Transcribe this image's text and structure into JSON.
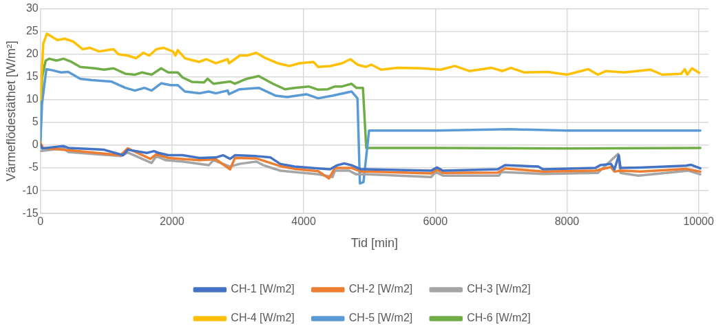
{
  "chart_data": {
    "type": "line",
    "xlabel": "Tid [min]",
    "ylabel": "Värmeflödestäthet [W/m²]",
    "xlim": [
      0,
      10150
    ],
    "xticks": [
      0,
      2000,
      4000,
      6000,
      8000,
      10000
    ],
    "ylim": [
      -15,
      30
    ],
    "yticks": [
      -15,
      -10,
      -5,
      0,
      5,
      10,
      15,
      20,
      25,
      30
    ],
    "grid": true,
    "legend": "bottom",
    "series": [
      {
        "name": "CH-1 [W/m2]",
        "color": "#4472c4",
        "x": [
          0,
          25,
          351,
          423,
          966,
          1255,
          1327,
          1617,
          1725,
          1797,
          1942,
          2159,
          2412,
          2665,
          2774,
          2882,
          2955,
          3280,
          3497,
          3642,
          3859,
          4220,
          4401,
          4510,
          4618,
          4727,
          4872,
          4957,
          5935,
          6025,
          6116,
          6949,
          7057,
          7564,
          7636,
          8433,
          8505,
          8668,
          8722,
          8788,
          8813,
          9121,
          9809,
          9881,
          10026
        ],
        "values": [
          0.1,
          -0.7,
          -0.2,
          -0.6,
          -1,
          -2.2,
          -1,
          -1.7,
          -1.3,
          -1.7,
          -2.2,
          -2.2,
          -2.8,
          -2.7,
          -2.2,
          -3,
          -2.2,
          -2.4,
          -2.7,
          -4.1,
          -4.7,
          -5.1,
          -5.3,
          -4.4,
          -4,
          -4.4,
          -5.3,
          -5.3,
          -5.6,
          -4.9,
          -5.6,
          -5.3,
          -4.4,
          -4.7,
          -5.3,
          -5,
          -4.4,
          -4.1,
          -5.3,
          -2.2,
          -5,
          -4.9,
          -4.5,
          -4.3,
          -5.1
        ]
      },
      {
        "name": "CH-2 [W/m2]",
        "color": "#ed7d31",
        "x": [
          0,
          40,
          423,
          1219,
          1327,
          1671,
          1761,
          1942,
          2412,
          2665,
          2882,
          2955,
          3280,
          3642,
          3859,
          4220,
          4383,
          4474,
          4727,
          4872,
          4957,
          5935,
          6025,
          6116,
          6949,
          7057,
          7636,
          8433,
          8668,
          8722,
          8813,
          9121,
          9809,
          10026
        ],
        "values": [
          0.5,
          -0.6,
          -1.1,
          -2.2,
          -0.7,
          -3,
          -2,
          -2.8,
          -3.3,
          -3.1,
          -5.3,
          -2.8,
          -2.9,
          -4.6,
          -5.2,
          -5.7,
          -7.3,
          -5,
          -5,
          -5.8,
          -5.8,
          -6.2,
          -5.4,
          -6.1,
          -6,
          -5.1,
          -5.8,
          -5.6,
          -4.8,
          -5.8,
          -5.6,
          -5.8,
          -5.2,
          -5.8
        ]
      },
      {
        "name": "CH-3 [W/m2]",
        "color": "#a5a5a5",
        "x": [
          0,
          351,
          423,
          1219,
          1327,
          1689,
          1761,
          1906,
          2159,
          2557,
          2629,
          2882,
          3027,
          3280,
          3389,
          3642,
          3859,
          4220,
          4438,
          4474,
          4691,
          4799,
          4957,
          5935,
          6007,
          6116,
          6967,
          7003,
          7636,
          8469,
          8777,
          8813,
          9085,
          9845,
          10026
        ],
        "values": [
          -1.3,
          -0.7,
          -1.5,
          -2.4,
          -1.6,
          -3.9,
          -2.4,
          -3.3,
          -3.6,
          -4.4,
          -3.3,
          -4.7,
          -4.1,
          -3.6,
          -4.4,
          -5.6,
          -5.9,
          -6.4,
          -7,
          -5.6,
          -5.6,
          -6.4,
          -6.4,
          -7,
          -5.9,
          -6.7,
          -6.7,
          -5.9,
          -6.3,
          -6.1,
          -1.9,
          -6.1,
          -6.7,
          -5.6,
          -6.4
        ]
      },
      {
        "name": "CH-4 [W/m2]",
        "color": "#ffc000",
        "x": [
          0,
          43,
          98,
          188,
          260,
          369,
          495,
          640,
          749,
          893,
          1110,
          1183,
          1327,
          1454,
          1562,
          1653,
          1761,
          1870,
          2014,
          2051,
          2087,
          2195,
          2412,
          2521,
          2665,
          2846,
          2864,
          3027,
          3135,
          3280,
          3425,
          3606,
          3787,
          3931,
          4148,
          4220,
          4401,
          4582,
          4709,
          4817,
          4944,
          5030,
          5175,
          5428,
          5790,
          6080,
          6297,
          6514,
          6858,
          7021,
          7148,
          7347,
          7709,
          7999,
          8324,
          8469,
          8596,
          8867,
          9266,
          9447,
          9736,
          9791,
          9827,
          9899,
          10008
        ],
        "values": [
          10,
          22.3,
          24.5,
          23.7,
          23.1,
          23.4,
          22.8,
          21.1,
          21.4,
          20.6,
          21.1,
          20,
          19.7,
          19.1,
          20.3,
          19.7,
          21.1,
          21.4,
          20.6,
          19.7,
          20.9,
          19.1,
          18.3,
          18.9,
          18,
          18.9,
          18,
          19.7,
          19.7,
          20.3,
          19.1,
          18,
          17.4,
          18,
          18.3,
          17.2,
          17.4,
          18,
          18.9,
          17.7,
          17.2,
          17.7,
          16.6,
          17,
          16.9,
          16.6,
          17.4,
          16.3,
          17,
          16.3,
          17,
          16,
          16.1,
          15.5,
          16.7,
          15.5,
          16.3,
          16,
          16.6,
          15.5,
          15.7,
          16.7,
          15.5,
          16.9,
          15.9
        ]
      },
      {
        "name": "CH-5 [W/m2]",
        "color": "#5b9bd5",
        "x": [
          0,
          25,
          90,
          170,
          315,
          423,
          604,
          785,
          1074,
          1291,
          1436,
          1580,
          1689,
          1834,
          1978,
          2087,
          2195,
          2412,
          2557,
          2665,
          2846,
          2864,
          3027,
          3316,
          3570,
          3750,
          4040,
          4220,
          4438,
          4727,
          4817,
          4854,
          4908,
          4993,
          6000,
          7130,
          8000,
          10026
        ],
        "values": [
          1,
          9.2,
          16.7,
          16.5,
          16,
          16.1,
          14.6,
          14.3,
          14,
          12.6,
          12,
          12.6,
          12,
          13.6,
          13.2,
          13.2,
          11.8,
          11.4,
          11.8,
          11.4,
          12,
          11.2,
          12.3,
          12.6,
          10.9,
          10.6,
          11.2,
          10.3,
          10.9,
          11.8,
          10.3,
          -8.4,
          -8.1,
          3.2,
          3.2,
          3.5,
          3.2,
          3.2
        ]
      },
      {
        "name": "CH-6 [W/m2]",
        "color": "#70ad47",
        "x": [
          0,
          25,
          80,
          134,
          242,
          351,
          459,
          604,
          821,
          966,
          1110,
          1291,
          1436,
          1545,
          1689,
          1834,
          1942,
          2087,
          2159,
          2304,
          2485,
          2539,
          2629,
          2882,
          2955,
          3135,
          3316,
          3533,
          3714,
          3859,
          4076,
          4220,
          4365,
          4474,
          4582,
          4727,
          4799,
          4900,
          4950,
          6000,
          8000,
          10026
        ],
        "values": [
          0.5,
          14.9,
          18.6,
          19,
          18.6,
          19,
          18.4,
          17.2,
          16.9,
          16.6,
          16.9,
          15.7,
          15.5,
          16,
          15.5,
          16.9,
          16,
          16,
          14.9,
          13.9,
          13.8,
          14.6,
          13.5,
          14,
          13.5,
          14.6,
          15.2,
          13.5,
          12.3,
          12.6,
          12.9,
          12.2,
          12.3,
          12.9,
          12.9,
          13.5,
          12.6,
          12.6,
          -0.6,
          -0.6,
          -0.7,
          -0.6
        ]
      }
    ]
  }
}
